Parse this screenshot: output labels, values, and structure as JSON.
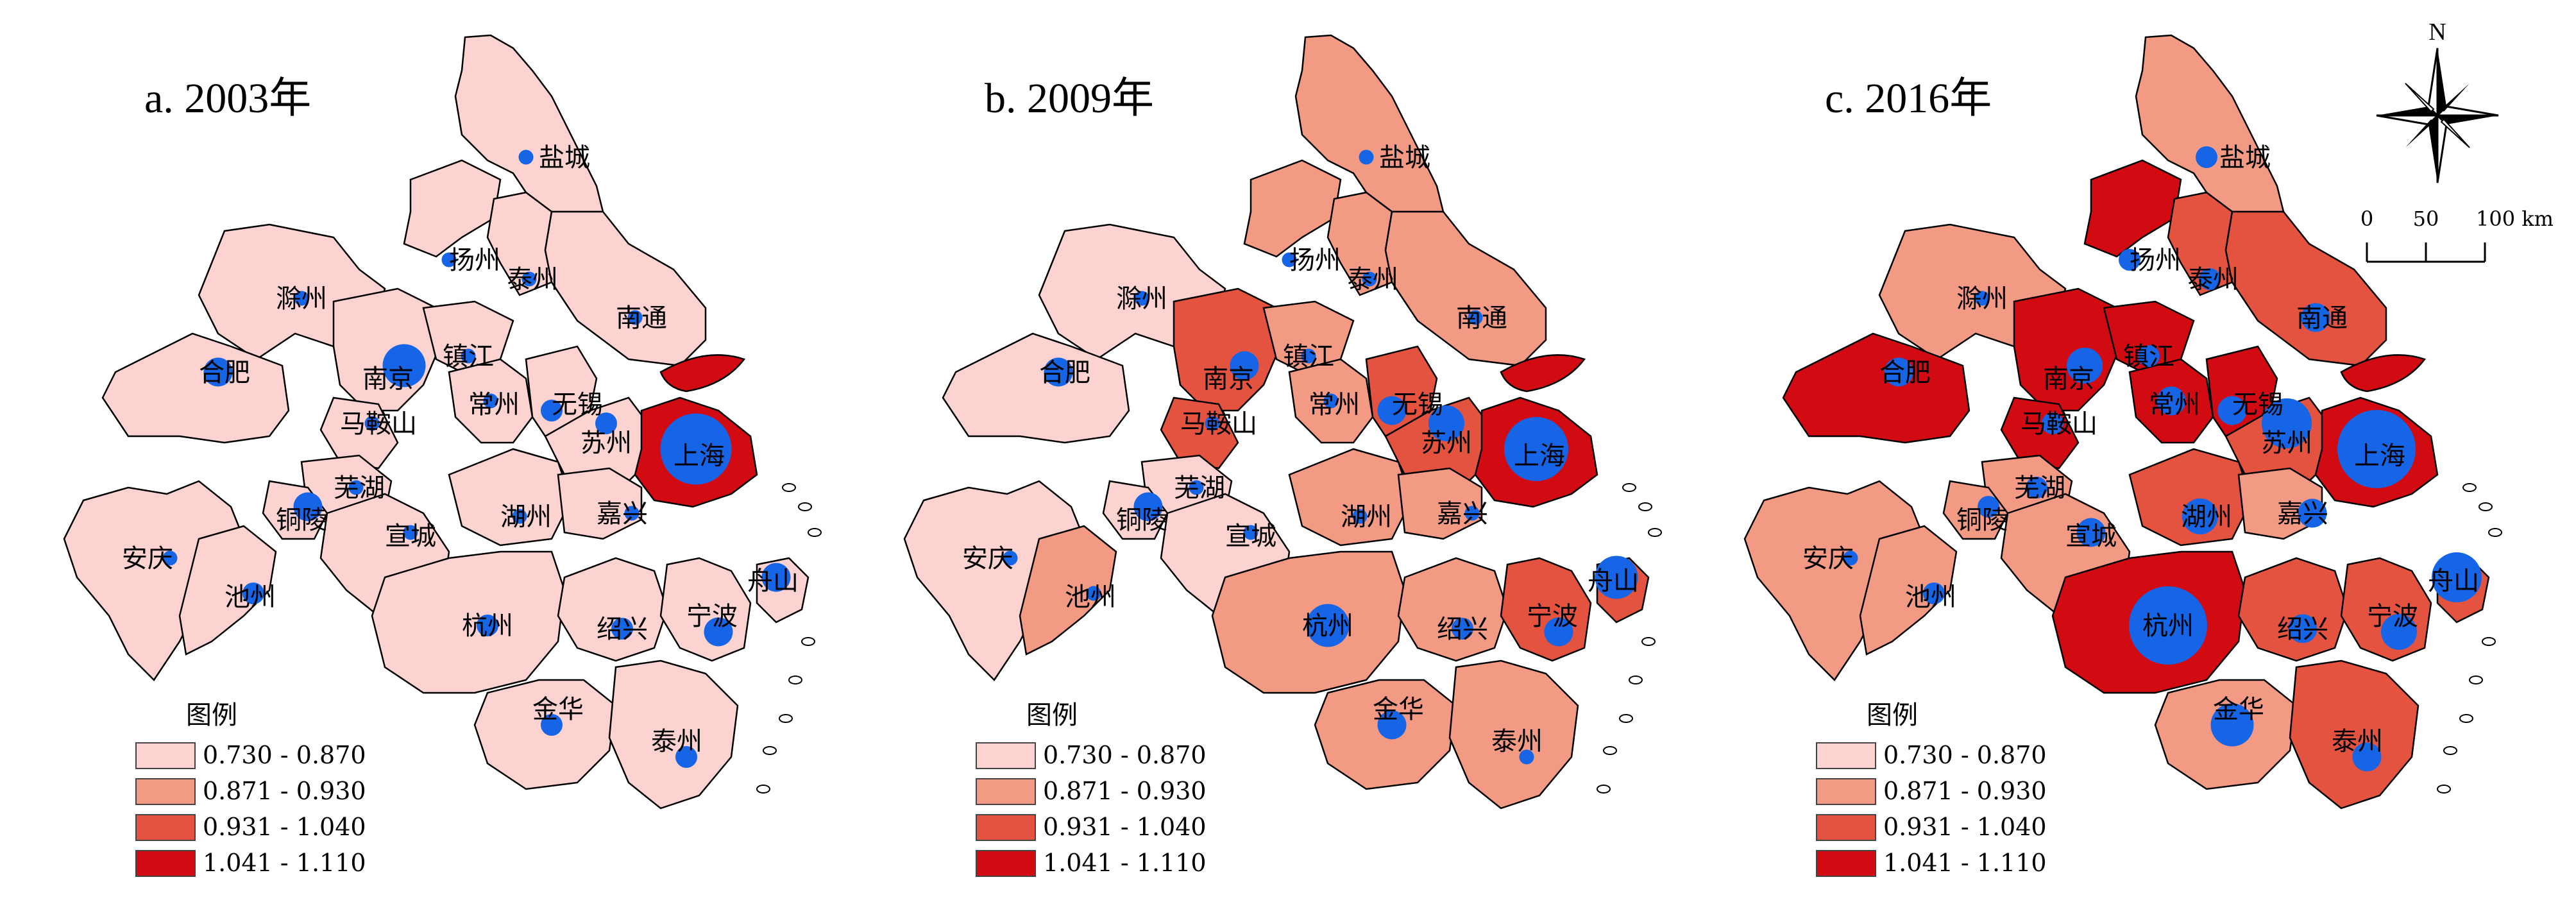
{
  "panels": [
    {
      "title": "a. 2003年"
    },
    {
      "title": "b. 2009年"
    },
    {
      "title": "c. 2016年"
    }
  ],
  "legend": {
    "title": "图例",
    "classes": [
      {
        "label": "0.730 - 0.870",
        "color": "#fcd3d0"
      },
      {
        "label": "0.871 - 0.930",
        "color": "#f39a85"
      },
      {
        "label": "0.931 - 1.040",
        "color": "#e4533f"
      },
      {
        "label": "1.041 - 1.110",
        "color": "#d20a12"
      }
    ]
  },
  "bubble_color": "#1565e6",
  "cities": [
    {
      "name": "盐城",
      "class": [
        0,
        1,
        1
      ],
      "bubble": [
        1,
        1,
        2
      ]
    },
    {
      "name": "扬州",
      "class": [
        0,
        1,
        3
      ],
      "bubble": [
        1,
        1,
        2
      ]
    },
    {
      "name": "泰州",
      "class": [
        0,
        1,
        2
      ],
      "bubble": [
        1,
        1,
        2
      ]
    },
    {
      "name": "南通",
      "class": [
        0,
        1,
        2
      ],
      "bubble": [
        1,
        1,
        3
      ]
    },
    {
      "name": "滁州",
      "class": [
        0,
        0,
        1
      ],
      "bubble": [
        1,
        1,
        1
      ]
    },
    {
      "name": "合肥",
      "class": [
        0,
        0,
        3
      ],
      "bubble": [
        3,
        3,
        3
      ]
    },
    {
      "name": "南京",
      "class": [
        0,
        2,
        3
      ],
      "bubble": [
        5,
        3,
        4
      ]
    },
    {
      "name": "镇江",
      "class": [
        0,
        1,
        3
      ],
      "bubble": [
        1,
        1,
        2
      ]
    },
    {
      "name": "常州",
      "class": [
        0,
        1,
        3
      ],
      "bubble": [
        1,
        1,
        3
      ]
    },
    {
      "name": "无锡",
      "class": [
        0,
        2,
        3
      ],
      "bubble": [
        2,
        3,
        3
      ]
    },
    {
      "name": "苏州",
      "class": [
        0,
        2,
        2
      ],
      "bubble": [
        2,
        4,
        6
      ]
    },
    {
      "name": "上海",
      "class": [
        3,
        3,
        3
      ],
      "bubble": [
        9,
        8,
        10
      ]
    },
    {
      "name": "马鞍山",
      "class": [
        0,
        2,
        3
      ],
      "bubble": [
        1,
        1,
        2
      ]
    },
    {
      "name": "芜湖",
      "class": [
        0,
        0,
        1
      ],
      "bubble": [
        1,
        1,
        2
      ]
    },
    {
      "name": "铜陵",
      "class": [
        0,
        0,
        1
      ],
      "bubble": [
        3,
        3,
        2
      ]
    },
    {
      "name": "安庆",
      "class": [
        0,
        0,
        1
      ],
      "bubble": [
        1,
        1,
        1
      ]
    },
    {
      "name": "池州",
      "class": [
        0,
        1,
        1
      ],
      "bubble": [
        2,
        1,
        2
      ]
    },
    {
      "name": "宣城",
      "class": [
        0,
        0,
        1
      ],
      "bubble": [
        1,
        1,
        3
      ]
    },
    {
      "name": "湖州",
      "class": [
        0,
        1,
        2
      ],
      "bubble": [
        1,
        1,
        4
      ]
    },
    {
      "name": "嘉兴",
      "class": [
        0,
        1,
        1
      ],
      "bubble": [
        1,
        1,
        3
      ]
    },
    {
      "name": "杭州",
      "class": [
        0,
        1,
        3
      ],
      "bubble": [
        2,
        5,
        10
      ]
    },
    {
      "name": "绍兴",
      "class": [
        0,
        1,
        2
      ],
      "bubble": [
        2,
        2,
        3
      ]
    },
    {
      "name": "宁波",
      "class": [
        0,
        2,
        2
      ],
      "bubble": [
        3,
        3,
        4
      ]
    },
    {
      "name": "舟山",
      "class": [
        0,
        2,
        2
      ],
      "bubble": [
        3,
        5,
        6
      ]
    },
    {
      "name": "金华",
      "class": [
        0,
        1,
        1
      ],
      "bubble": [
        2,
        3,
        5
      ]
    },
    {
      "name": "泰州",
      "class": [
        0,
        1,
        2
      ],
      "bubble": [
        2,
        1,
        3
      ]
    }
  ],
  "compass": {
    "north_label": "N"
  },
  "scale_bar": {
    "labels": [
      "0",
      "50",
      "100 km"
    ]
  }
}
